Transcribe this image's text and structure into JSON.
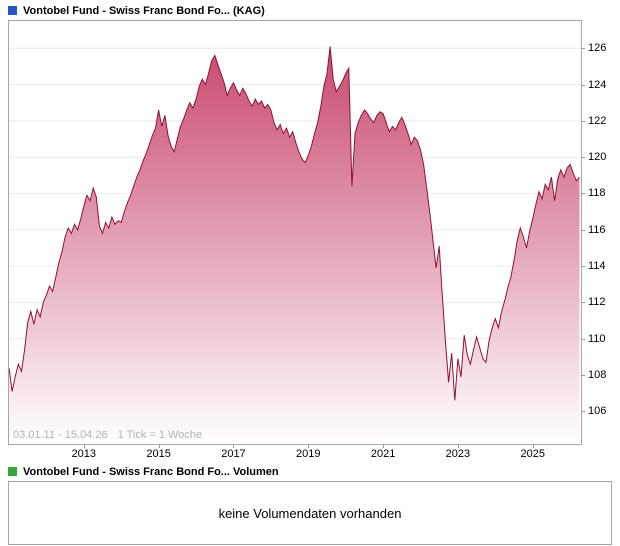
{
  "price_chart": {
    "title": "Vontobel Fund - Swiss Franc Bond Fo... (KAG)",
    "icon_color": "#2453c4",
    "range_label": "03.01.11 - 15.04.26",
    "tick_label": "1 Tick = 1 Woche",
    "border_color": "#a6a6a6",
    "range_label_color": "#b3b3b3"
  },
  "volume_section": {
    "title": "Vontobel Fund - Swiss Franc Bond Fo... Volumen",
    "icon_color": "#3aa63a",
    "empty_message": "keine Volumendaten vorhanden"
  },
  "chart_data": {
    "type": "area",
    "title": "Vontobel Fund - Swiss Franc Bond Fo... (KAG)",
    "xlabel": "",
    "ylabel": "",
    "x_unit": "decimal_year",
    "x_start": 2011.0,
    "x_step": 0.0833333,
    "xlim": [
      2011.0,
      2026.29
    ],
    "ylim": [
      104.2,
      127.5
    ],
    "y_ticks": [
      126,
      124,
      122,
      120,
      118,
      116,
      114,
      112,
      110,
      108,
      106
    ],
    "x_ticks": [
      2013,
      2015,
      2017,
      2019,
      2021,
      2023,
      2025
    ],
    "grid": true,
    "grid_color": "#ececec",
    "legend": "none",
    "line_color": "#8d1431",
    "fill_gradient": [
      "#c9496f",
      "#ffffff"
    ],
    "values": [
      108.4,
      107.1,
      107.9,
      108.6,
      108.2,
      109.4,
      110.9,
      111.5,
      110.8,
      111.6,
      111.2,
      112.0,
      112.4,
      112.9,
      112.6,
      113.4,
      114.2,
      114.8,
      115.6,
      116.1,
      115.8,
      116.3,
      116.0,
      116.6,
      117.3,
      117.9,
      117.6,
      118.3,
      117.8,
      116.2,
      115.8,
      116.4,
      116.1,
      116.7,
      116.3,
      116.5,
      116.4,
      117.0,
      117.5,
      117.9,
      118.4,
      118.9,
      119.3,
      119.8,
      120.2,
      120.7,
      121.2,
      121.6,
      122.6,
      121.7,
      122.3,
      121.2,
      120.6,
      120.3,
      121.0,
      121.7,
      122.1,
      122.6,
      123.0,
      122.7,
      123.2,
      123.9,
      124.3,
      124.0,
      124.6,
      125.3,
      125.6,
      125.1,
      124.6,
      124.1,
      123.4,
      123.8,
      124.1,
      123.7,
      123.4,
      123.8,
      123.5,
      123.1,
      122.8,
      123.2,
      122.9,
      123.1,
      122.7,
      122.9,
      122.6,
      121.9,
      121.5,
      121.8,
      121.3,
      121.6,
      121.1,
      121.4,
      120.8,
      120.3,
      119.9,
      119.7,
      120.1,
      120.6,
      121.3,
      121.9,
      122.8,
      123.9,
      124.6,
      126.1,
      124.3,
      123.6,
      123.9,
      124.2,
      124.6,
      124.9,
      118.4,
      121.3,
      121.9,
      122.3,
      122.6,
      122.4,
      122.1,
      121.9,
      122.3,
      122.5,
      122.4,
      121.9,
      121.4,
      121.7,
      121.5,
      121.9,
      122.2,
      121.8,
      121.3,
      120.7,
      121.1,
      120.9,
      120.4,
      119.6,
      118.3,
      116.9,
      115.4,
      113.9,
      115.1,
      112.4,
      109.8,
      107.6,
      109.2,
      106.6,
      108.9,
      107.9,
      110.2,
      109.1,
      108.6,
      109.4,
      110.1,
      109.5,
      108.9,
      108.7,
      109.9,
      110.6,
      111.1,
      110.6,
      111.5,
      112.1,
      112.8,
      113.4,
      114.3,
      115.4,
      116.1,
      115.6,
      115.0,
      115.9,
      116.6,
      117.4,
      118.1,
      117.7,
      118.5,
      118.2,
      118.9,
      117.6,
      118.8,
      119.3,
      118.9,
      119.4,
      119.6,
      119.1,
      118.7,
      118.9
    ]
  }
}
